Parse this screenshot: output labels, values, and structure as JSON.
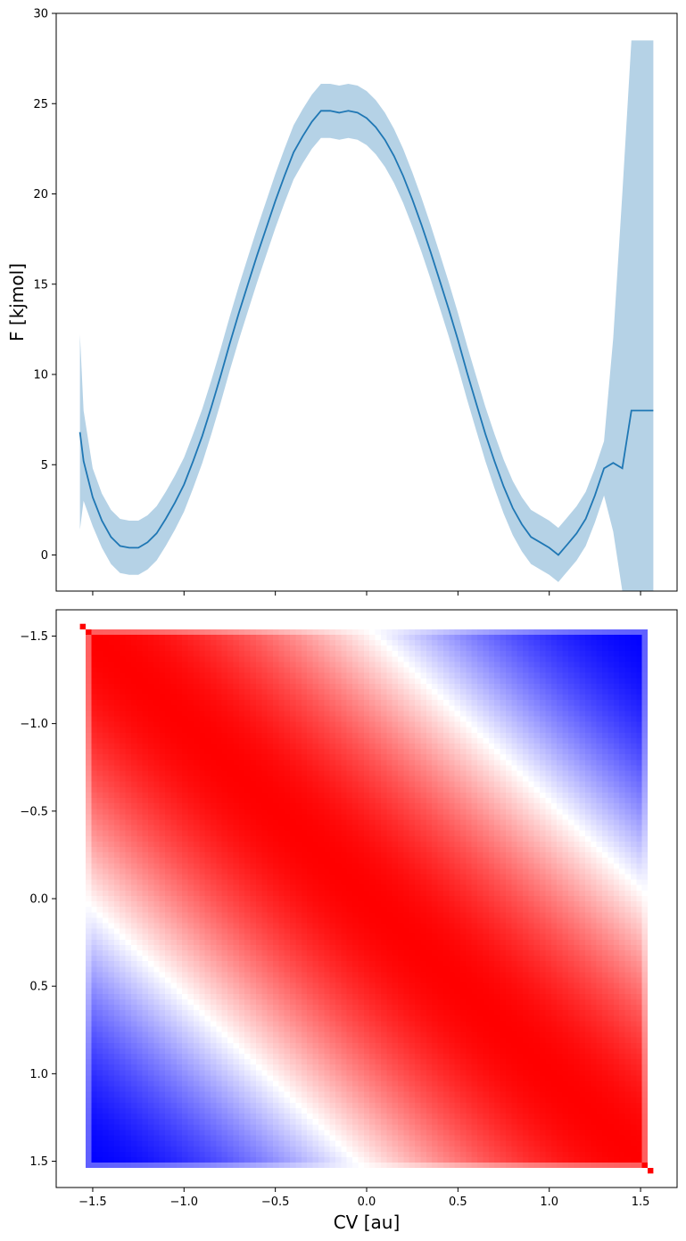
{
  "chart_data": [
    {
      "type": "line",
      "ylabel": "F [kjmol]",
      "xlabel": "",
      "xlim": [
        -1.7,
        1.7
      ],
      "ylim": [
        -2.0,
        30.0
      ],
      "yticks": [
        0,
        5,
        10,
        15,
        20,
        25,
        30
      ],
      "xticks": [
        -1.5,
        -1.0,
        -0.5,
        0.0,
        0.5,
        1.0,
        1.5
      ],
      "xtick_labels_shown": false,
      "grid": false,
      "series": [
        {
          "color": "#1f77b4",
          "band_color": "#1f77b4",
          "band_opacity": 0.33,
          "x": [
            -1.57,
            -1.55,
            -1.5,
            -1.45,
            -1.4,
            -1.35,
            -1.3,
            -1.25,
            -1.2,
            -1.15,
            -1.1,
            -1.05,
            -1.0,
            -0.95,
            -0.9,
            -0.85,
            -0.8,
            -0.75,
            -0.7,
            -0.65,
            -0.6,
            -0.55,
            -0.5,
            -0.45,
            -0.4,
            -0.35,
            -0.3,
            -0.25,
            -0.2,
            -0.15,
            -0.1,
            -0.05,
            0.0,
            0.05,
            0.1,
            0.15,
            0.2,
            0.25,
            0.3,
            0.35,
            0.4,
            0.45,
            0.5,
            0.55,
            0.6,
            0.65,
            0.7,
            0.75,
            0.8,
            0.85,
            0.9,
            0.95,
            1.0,
            1.05,
            1.1,
            1.15,
            1.2,
            1.25,
            1.3,
            1.35,
            1.4,
            1.45,
            1.5,
            1.53,
            1.55,
            1.57
          ],
          "y": [
            6.8,
            5.2,
            3.2,
            1.9,
            1.0,
            0.5,
            0.4,
            0.4,
            0.7,
            1.2,
            2.0,
            2.9,
            3.9,
            5.2,
            6.6,
            8.2,
            9.9,
            11.7,
            13.4,
            15.0,
            16.6,
            18.1,
            19.6,
            21.0,
            22.3,
            23.2,
            24.0,
            24.6,
            24.6,
            24.5,
            24.6,
            24.5,
            24.2,
            23.7,
            23.0,
            22.1,
            21.0,
            19.7,
            18.3,
            16.8,
            15.2,
            13.6,
            11.9,
            10.1,
            8.4,
            6.7,
            5.2,
            3.8,
            2.6,
            1.7,
            1.0,
            0.7,
            0.4,
            0.0,
            0.6,
            1.2,
            2.0,
            3.3,
            4.8,
            5.1,
            4.8,
            8.0,
            8.0,
            8.0,
            8.0,
            8.0
          ],
          "lower": [
            1.4,
            3.0,
            1.6,
            0.4,
            -0.5,
            -1.0,
            -1.1,
            -1.1,
            -0.8,
            -0.3,
            0.5,
            1.4,
            2.4,
            3.7,
            5.1,
            6.7,
            8.4,
            10.2,
            11.9,
            13.5,
            15.1,
            16.6,
            18.1,
            19.5,
            20.8,
            21.7,
            22.5,
            23.1,
            23.1,
            23.0,
            23.1,
            23.0,
            22.7,
            22.2,
            21.5,
            20.6,
            19.5,
            18.2,
            16.8,
            15.3,
            13.7,
            12.1,
            10.4,
            8.6,
            6.9,
            5.2,
            3.7,
            2.3,
            1.1,
            0.2,
            -0.5,
            -0.8,
            -1.1,
            -1.5,
            -0.9,
            -0.3,
            0.5,
            1.8,
            3.3,
            1.3,
            -2.0,
            -2.0,
            -2.0,
            -2.0,
            -2.0,
            -2.0
          ],
          "upper": [
            12.2,
            8.0,
            4.8,
            3.4,
            2.5,
            2.0,
            1.9,
            1.9,
            2.2,
            2.7,
            3.5,
            4.4,
            5.4,
            6.7,
            8.1,
            9.7,
            11.4,
            13.2,
            14.9,
            16.5,
            18.1,
            19.6,
            21.1,
            22.5,
            23.8,
            24.7,
            25.5,
            26.1,
            26.1,
            26.0,
            26.1,
            26.0,
            25.7,
            25.2,
            24.5,
            23.6,
            22.5,
            21.2,
            19.8,
            18.3,
            16.7,
            15.1,
            13.4,
            11.6,
            9.9,
            8.2,
            6.7,
            5.3,
            4.1,
            3.2,
            2.5,
            2.2,
            1.9,
            1.5,
            2.1,
            2.7,
            3.5,
            4.8,
            6.3,
            12.0,
            20.0,
            28.5,
            28.5,
            28.5,
            28.5,
            28.5
          ]
        }
      ]
    },
    {
      "type": "heatmap",
      "xlabel": "CV [au]",
      "ylabel": "",
      "xlim": [
        -1.7,
        1.7
      ],
      "ylim": [
        1.65,
        -1.65
      ],
      "xticks": [
        -1.5,
        -1.0,
        -0.5,
        0.0,
        0.5,
        1.0,
        1.5
      ],
      "yticks": [
        -1.5,
        -1.0,
        -0.5,
        0.0,
        0.5,
        1.0,
        1.5
      ],
      "extent": [
        -1.57,
        1.57,
        -1.57,
        1.57
      ],
      "grid_size": 101,
      "colormap": "bwr",
      "colors": {
        "low": "#0000ff",
        "mid": "#ffffff",
        "high": "#ff0000"
      },
      "description": "Correlation-like matrix: red (+1) along the diagonal, blue (-1) in the off-diagonal corners near (1.3,-1.3) and (-1.3,1.3)."
    }
  ],
  "tick_text": {
    "top_y": [
      "0",
      "5",
      "10",
      "15",
      "20",
      "25",
      "30"
    ],
    "bottom_x": [
      "−1.5",
      "−1.0",
      "−0.5",
      "0.0",
      "0.5",
      "1.0",
      "1.5"
    ],
    "bottom_y": [
      "−1.5",
      "−1.0",
      "−0.5",
      "0.0",
      "0.5",
      "1.0",
      "1.5"
    ]
  },
  "labels": {
    "top_ylabel": "F [kjmol]",
    "bottom_xlabel": "CV [au]"
  }
}
